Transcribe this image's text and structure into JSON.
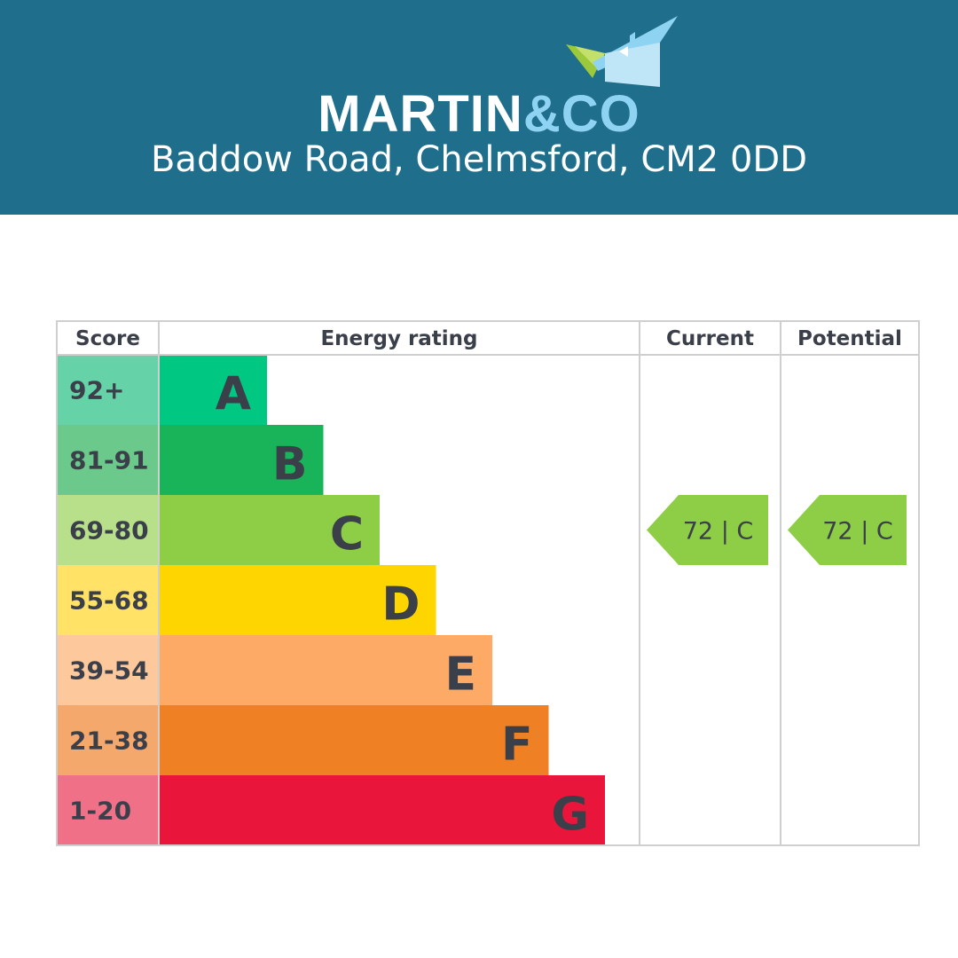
{
  "colors": {
    "header_bg": "#1f6e8c",
    "brand_white": "#ffffff",
    "brand_accent": "#8fd3f2",
    "logo_green": "#9cc83c",
    "logo_blue": "#8fd3f2",
    "grid": "#cfcfcf",
    "label_dark": "#3a3f4a"
  },
  "header": {
    "brand_part1": "MARTIN",
    "brand_part2": "&CO",
    "address": "Baddow Road, Chelmsford, CM2 0DD"
  },
  "logo": {
    "icon": "house-logo-icon"
  },
  "chart_data": {
    "type": "table",
    "columns": [
      "Score",
      "Energy rating",
      "Current",
      "Potential"
    ],
    "bands": [
      {
        "score": "92+",
        "letter": "A",
        "color": "#00c781",
        "score_bg": "#66d2a8"
      },
      {
        "score": "81-91",
        "letter": "B",
        "color": "#19b459",
        "score_bg": "#6ac98b"
      },
      {
        "score": "69-80",
        "letter": "C",
        "color": "#8dce46",
        "score_bg": "#b8e08b"
      },
      {
        "score": "55-68",
        "letter": "D",
        "color": "#ffd500",
        "score_bg": "#ffe266"
      },
      {
        "score": "39-54",
        "letter": "E",
        "color": "#fcaa65",
        "score_bg": "#fdc89b"
      },
      {
        "score": "21-38",
        "letter": "F",
        "color": "#ef8023",
        "score_bg": "#f4a86b"
      },
      {
        "score": "1-20",
        "letter": "G",
        "color": "#e9153b",
        "score_bg": "#f07088"
      }
    ],
    "current": {
      "value": 72,
      "letter": "C",
      "label": "72 | C",
      "color": "#8dce46"
    },
    "potential": {
      "value": 72,
      "letter": "C",
      "label": "72 | C",
      "color": "#8dce46"
    }
  }
}
